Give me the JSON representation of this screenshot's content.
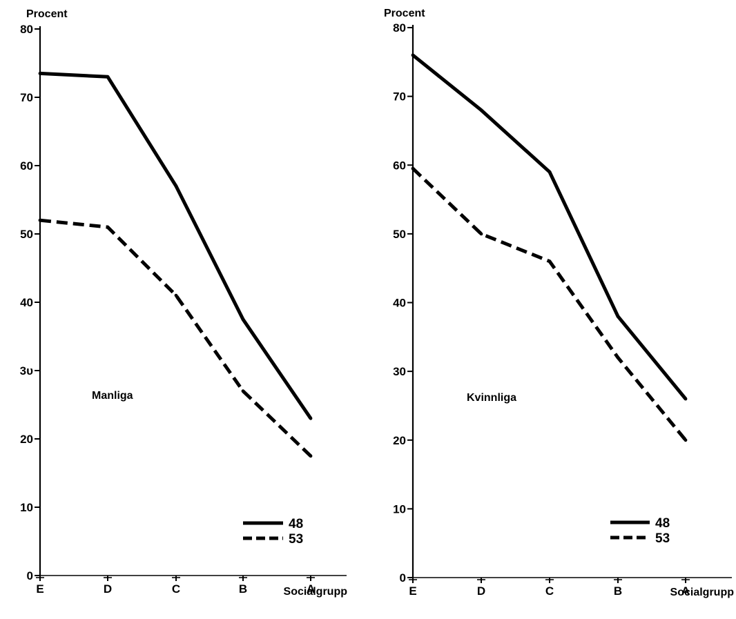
{
  "chart_data": [
    {
      "type": "line",
      "ylabel": "Procent",
      "xlabel": "Socialgrupp",
      "annotation": "Manliga",
      "categories": [
        "E",
        "D",
        "C",
        "B",
        "A"
      ],
      "y_ticks": [
        0,
        10,
        20,
        30,
        40,
        50,
        60,
        70,
        80
      ],
      "y_tick_labels": [
        "0",
        "10",
        "20",
        "3υ",
        "40",
        "50",
        "60",
        "70",
        "80"
      ],
      "ylim": [
        0,
        80
      ],
      "legend_position": "bottom-right",
      "series": [
        {
          "name": "48",
          "style": "solid",
          "values": [
            73.5,
            73,
            57,
            37.5,
            23
          ]
        },
        {
          "name": "53",
          "style": "dashed",
          "values": [
            52,
            51,
            41,
            27,
            17.5
          ]
        }
      ]
    },
    {
      "type": "line",
      "ylabel": "Procent",
      "xlabel": "Socialgrupp",
      "annotation": "Kvinnliga",
      "categories": [
        "E",
        "D",
        "C",
        "B",
        "A"
      ],
      "y_ticks": [
        0,
        10,
        20,
        30,
        40,
        50,
        60,
        70,
        80
      ],
      "y_tick_labels": [
        "0",
        "10",
        "20",
        "30",
        "40",
        "50",
        "60",
        "70",
        "80"
      ],
      "ylim": [
        0,
        80
      ],
      "legend_position": "bottom-right",
      "series": [
        {
          "name": "48",
          "style": "solid",
          "values": [
            76,
            68,
            59,
            38,
            26
          ]
        },
        {
          "name": "53",
          "style": "dashed",
          "values": [
            59.5,
            50,
            46,
            32,
            20
          ]
        }
      ]
    }
  ],
  "colors": {
    "ink": "#000000",
    "background": "#ffffff"
  }
}
